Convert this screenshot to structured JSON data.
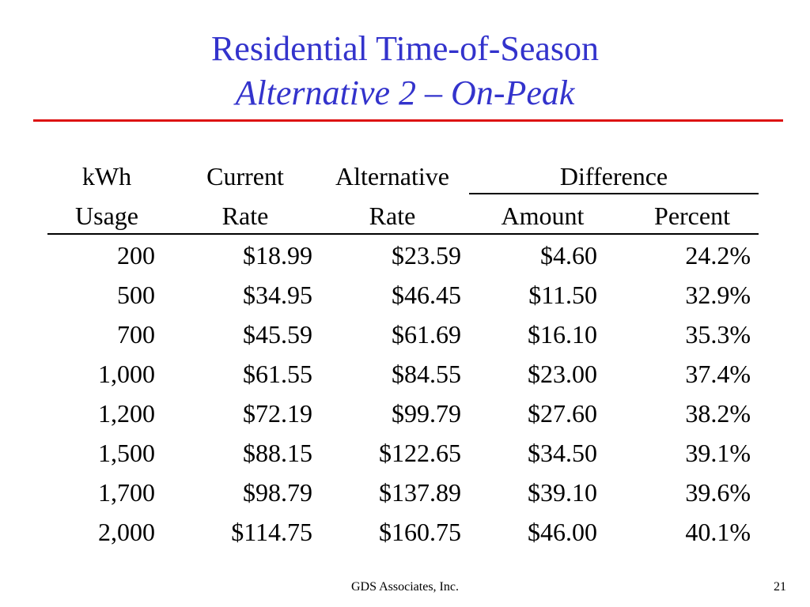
{
  "title": {
    "line1": "Residential Time-of-Season",
    "line2": "Alternative 2 – On-Peak"
  },
  "colors": {
    "title": "#3333cc",
    "rule": "#dd1111",
    "text": "#000000"
  },
  "table": {
    "header_row1": {
      "usage": "kWh",
      "current": "Current",
      "alternative": "Alternative",
      "difference": "Difference"
    },
    "header_row2": {
      "usage": "Usage",
      "current": "Rate",
      "alternative": "Rate",
      "amount": "Amount",
      "percent": "Percent"
    },
    "rows": [
      {
        "usage": "200",
        "current": "$18.99",
        "alternative": "$23.59",
        "amount": "$4.60",
        "percent": "24.2%"
      },
      {
        "usage": "500",
        "current": "$34.95",
        "alternative": "$46.45",
        "amount": "$11.50",
        "percent": "32.9%"
      },
      {
        "usage": "700",
        "current": "$45.59",
        "alternative": "$61.69",
        "amount": "$16.10",
        "percent": "35.3%"
      },
      {
        "usage": "1,000",
        "current": "$61.55",
        "alternative": "$84.55",
        "amount": "$23.00",
        "percent": "37.4%"
      },
      {
        "usage": "1,200",
        "current": "$72.19",
        "alternative": "$99.79",
        "amount": "$27.60",
        "percent": "38.2%"
      },
      {
        "usage": "1,500",
        "current": "$88.15",
        "alternative": "$122.65",
        "amount": "$34.50",
        "percent": "39.1%"
      },
      {
        "usage": "1,700",
        "current": "$98.79",
        "alternative": "$137.89",
        "amount": "$39.10",
        "percent": "39.6%"
      },
      {
        "usage": "2,000",
        "current": "$114.75",
        "alternative": "$160.75",
        "amount": "$46.00",
        "percent": "40.1%"
      }
    ]
  },
  "footer": {
    "company": "GDS Associates, Inc.",
    "page_number": "21"
  }
}
